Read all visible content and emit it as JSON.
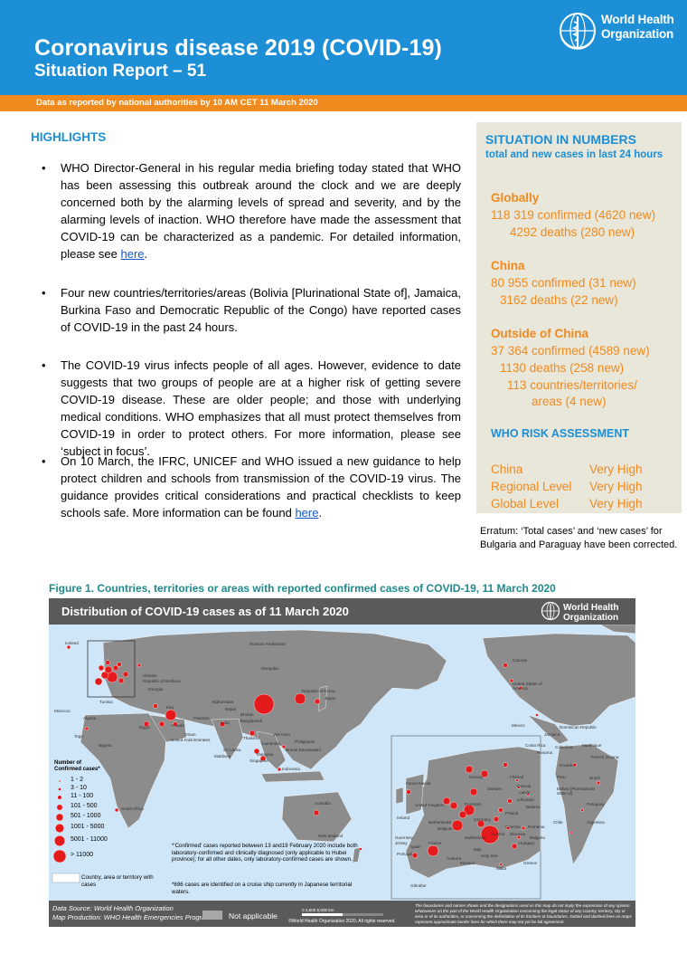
{
  "header": {
    "title": "Coronavirus disease 2019 (COVID-19)",
    "subtitle": "Situation Report – 51",
    "org_line1": "World Health",
    "org_line2": "Organization",
    "data_note": "Data as reported by national authorities by 10 AM CET 11 March 2020",
    "logo_icon": "who-emblem-icon"
  },
  "highlights": {
    "title": "HIGHLIGHTS",
    "bullet1_text": "WHO Director-General in his regular media briefing today stated that WHO has been assessing this outbreak around the clock and we are deeply concerned both by the alarming levels of spread and severity, and by the alarming levels of inaction. WHO therefore have made the assessment that COVID-19 can be characterized as a pandemic. For detailed information, please see ",
    "bullet1_link": "here",
    "bullet1_end": ".",
    "bullet2_text": "Four new countries/territories/areas (Bolivia [Plurinational State of], Jamaica, Burkina Faso and Democratic Republic of the Congo) have reported cases of COVID-19 in the past 24 hours.",
    "bullet3_text": "The COVID-19 virus infects people of all ages. However, evidence to date suggests that two groups of people are at a higher risk of getting severe COVID-19 disease. These are older people; and those with underlying medical conditions. WHO emphasizes that all must protect themselves from COVID-19 in order to protect others. For more information, please see ‘subject in focus’.",
    "bullet4_text": "On 10 March, the IFRC, UNICEF and WHO issued a new guidance to help protect children and schools from transmission of the COVID-19 virus. The guidance provides critical considerations and practical checklists to keep schools safe. More information can be found ",
    "bullet4_link": "here",
    "bullet4_end": "."
  },
  "situation": {
    "title": "SITUATION IN NUMBERS",
    "subtitle": "total and new cases in last 24 hours",
    "global_label": "Globally",
    "global_confirmed": "118 319 confirmed (4620 new)",
    "global_deaths": "4292 deaths (280 new)",
    "china_label": "China",
    "china_confirmed": "80 955 confirmed (31 new)",
    "china_deaths": "3162 deaths (22 new)",
    "outside_label": "Outside of China",
    "outside_confirmed": "37 364 confirmed (4589 new)",
    "outside_deaths": "1130 deaths (258 new)",
    "outside_countries_1": "113 countries/territories/",
    "outside_countries_2": "areas (4 new)",
    "risk_title": "WHO RISK ASSESSMENT",
    "risk": [
      {
        "level": "China",
        "value": "Very High"
      },
      {
        "level": "Regional Level",
        "value": "Very High"
      },
      {
        "level": "Global Level",
        "value": "Very High"
      }
    ]
  },
  "erratum": "Erratum: ‘Total cases’ and ‘new cases’ for Bulgaria and Paraguay have been corrected.",
  "figure": {
    "caption": "Figure 1. Countries, territories or areas with reported confirmed cases of COVID-19, 11 March 2020",
    "map_title": "Distribution of COVID-19 cases as of 11 March 2020",
    "map_org_1": "World Health",
    "map_org_2": "Organization",
    "legend_title_1": "Number of",
    "legend_title_2": "Confirmed cases*",
    "legend": [
      "1 - 2",
      "3 - 10",
      "11 - 100",
      "101 - 500",
      "501 - 1000",
      "1001 - 5000",
      "5001 - 11000",
      "> 11000"
    ],
    "legend_country": "Country, area or territory with cases",
    "note1": "*'Confirmed' cases reported between 13 and19 February 2020 include both laboratory-confirmed and clinically diagnosed (only applicable to Hubei province); for all other dates, only laboratory-confirmed cases are shown.",
    "note2": "*696 cases are identified on a cruise ship currently in Japanese territorial waters.",
    "source": "Data Source: World Health Organization",
    "production": "Map Production: WHO Health Emergencies Programme",
    "not_applicable": "Not applicable",
    "copyright": "©World Health Organization 2020, All rights reserved.",
    "scale": "0    2,500    5,000 km",
    "disclaimer": "The boundaries and names shown and the designations used on this map do not imply the expression of any opinion whatsoever on the part of the World Health Organization concerning the legal status of any country, territory, city or area or of its authorities, or concerning the delimitation of its frontiers or boundaries. Dotted and dashed lines on maps represent approximate border lines for which there may not yet be full agreement.",
    "labels": [
      "Iceland",
      "Russian Federation",
      "Ukraine",
      "Republic of Moldova",
      "Georgia",
      "Mongolia",
      "Republic of Korea",
      "Japan",
      "Nepal",
      "Bhutan",
      "Bangladesh",
      "India",
      "Afghanistan",
      "Pakistan",
      "Kuwait",
      "Egypt",
      "Oman",
      "United Arab Emirates",
      "Iraq",
      "Sri Lanka",
      "Maldives",
      "Thailand",
      "Viet Nam",
      "Cambodia",
      "Malaysia",
      "Singapore",
      "Philippines",
      "Brunei Darussalam",
      "Indonesia",
      "Australia",
      "New Zealand",
      "South Africa",
      "Togo",
      "Nigeria",
      "Morocco",
      "Algeria",
      "Tunisia",
      "Canada",
      "United States of America",
      "Mexico",
      "Dominican Republic",
      "Costa Rica",
      "Panama",
      "Colombia",
      "Ecuador",
      "Peru",
      "Brazil",
      "Bolivia (Plurinational State of)",
      "Paraguay",
      "Chile",
      "Argentina",
      "French Guiana",
      "Martinique",
      "Jamaica",
      "Faroe Islands",
      "Norway",
      "Finland",
      "Sweden",
      "Estonia",
      "Latvia",
      "Lithuania",
      "Belarus",
      "Denmark",
      "United Kingdom",
      "Ireland",
      "Netherlands",
      "Belgium",
      "Germany",
      "Poland",
      "France",
      "Switzerland",
      "Austria",
      "Czechia",
      "Slovakia",
      "Hungary",
      "Romania",
      "Bulgaria",
      "Italy",
      "Spain",
      "Portugal",
      "Andorra",
      "Monaco",
      "Greece",
      "Malta",
      "Gibraltar",
      "Guernsey",
      "Jersey",
      "Holy See"
    ]
  }
}
